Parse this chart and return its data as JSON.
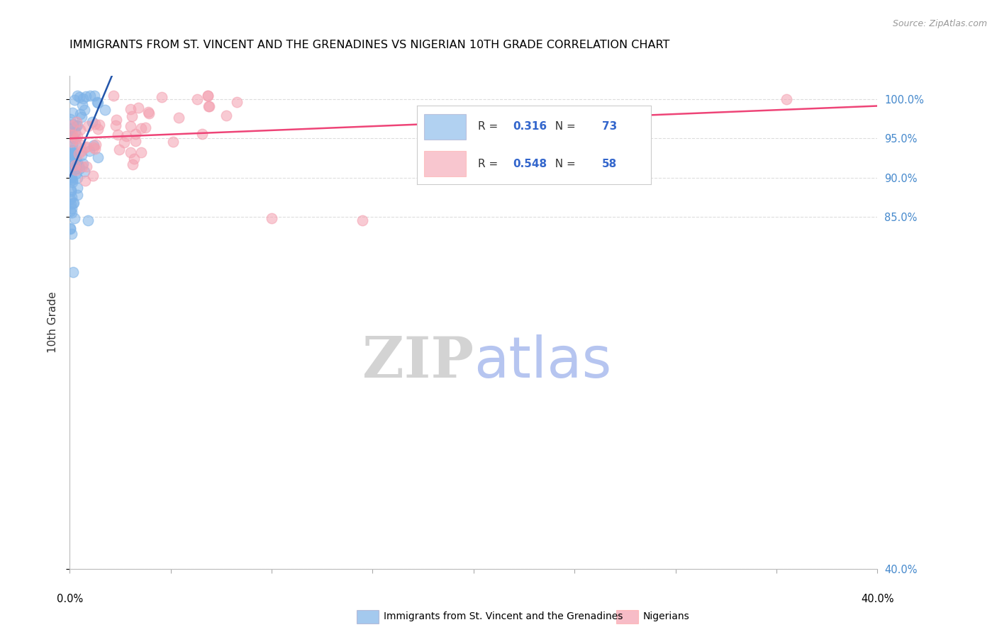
{
  "title": "IMMIGRANTS FROM ST. VINCENT AND THE GRENADINES VS NIGERIAN 10TH GRADE CORRELATION CHART",
  "source": "Source: ZipAtlas.com",
  "legend_label_blue": "Immigrants from St. Vincent and the Grenadines",
  "legend_label_pink": "Nigerians",
  "R_blue": 0.316,
  "N_blue": 73,
  "R_pink": 0.548,
  "N_pink": 58,
  "blue_color": "#7EB3E8",
  "pink_color": "#F4A0B0",
  "blue_line_color": "#2255AA",
  "pink_line_color": "#EE4477",
  "watermark_zip_color": "#CCCCCC",
  "watermark_atlas_color": "#AABBDD",
  "xlim": [
    0.0,
    0.4
  ],
  "ylim": [
    0.4,
    1.03
  ],
  "yticks": [
    1.0,
    0.95,
    0.9,
    0.85,
    0.4
  ],
  "ytick_labels": [
    "100.0%",
    "95.0%",
    "90.0%",
    "85.0%",
    "40.0%"
  ],
  "xtick_labels": [
    "0.0%",
    "40.0%"
  ]
}
